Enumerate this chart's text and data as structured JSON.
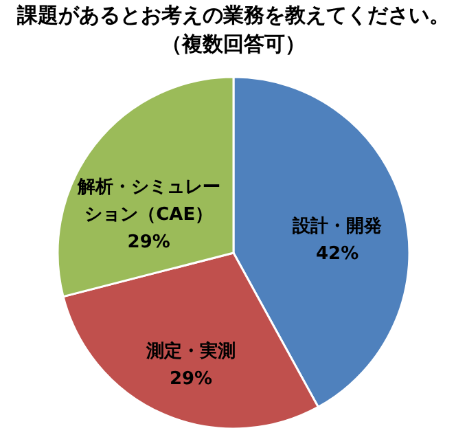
{
  "chart_data": {
    "type": "pie",
    "title": "課題があるとお考えの業務を教えてください。",
    "subtitle": "（複数回答可）",
    "categories": [
      "設計・開発",
      "測定・実測",
      "解析・シミュレーション（CAE）"
    ],
    "values": [
      42,
      29,
      29
    ],
    "colors": [
      "#4f81bd",
      "#c0504d",
      "#9bbb59"
    ],
    "value_labels": [
      "42%",
      "29%",
      "29%"
    ],
    "legend": false
  }
}
